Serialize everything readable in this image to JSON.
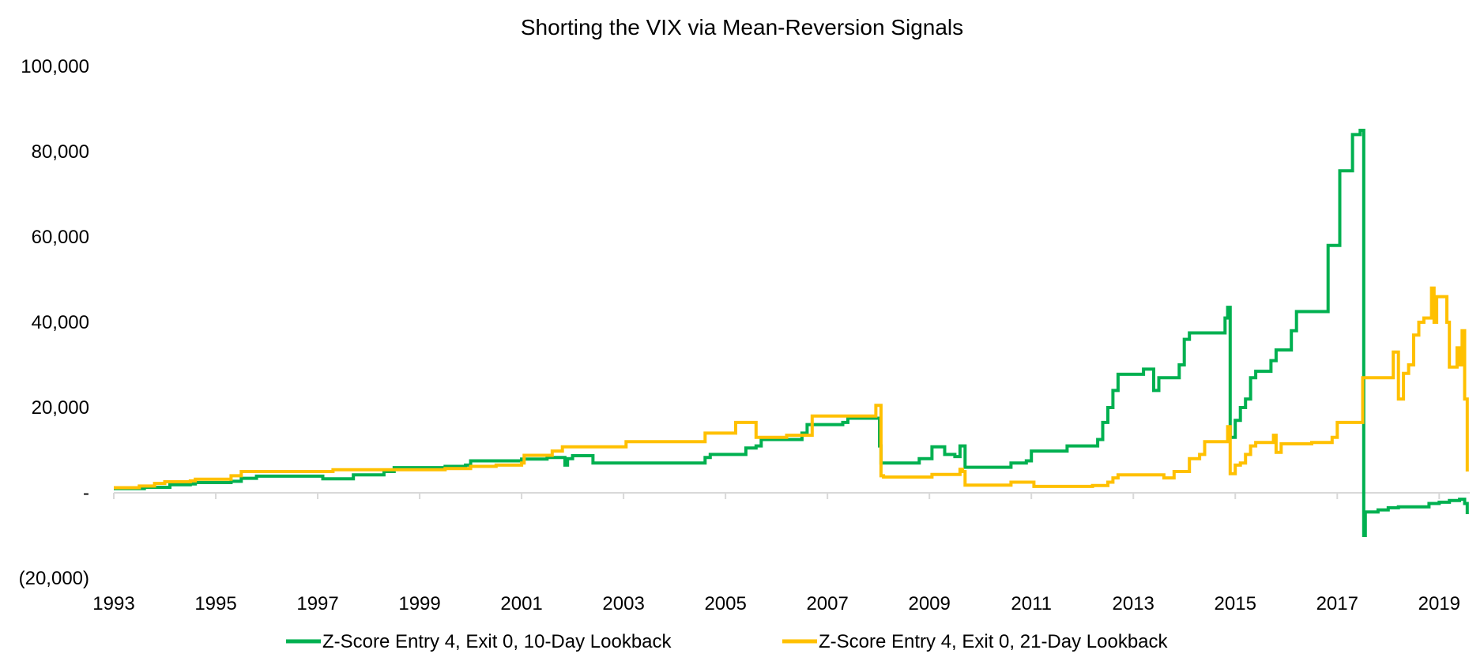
{
  "chart_data": {
    "type": "line",
    "title": "Shorting the VIX via Mean-Reversion Signals",
    "xlabel": "",
    "ylabel": "",
    "xlim": [
      1993,
      2019.6
    ],
    "ylim": [
      -20000,
      100000
    ],
    "x_ticks": [
      {
        "value": 1993,
        "label": "1993"
      },
      {
        "value": 1995,
        "label": "1995"
      },
      {
        "value": 1997,
        "label": "1997"
      },
      {
        "value": 1999,
        "label": "1999"
      },
      {
        "value": 2001,
        "label": "2001"
      },
      {
        "value": 2003,
        "label": "2003"
      },
      {
        "value": 2005,
        "label": "2005"
      },
      {
        "value": 2007,
        "label": "2007"
      },
      {
        "value": 2009,
        "label": "2009"
      },
      {
        "value": 2011,
        "label": "2011"
      },
      {
        "value": 2013,
        "label": "2013"
      },
      {
        "value": 2015,
        "label": "2015"
      },
      {
        "value": 2017,
        "label": "2017"
      },
      {
        "value": 2019,
        "label": "2019"
      }
    ],
    "y_ticks": [
      {
        "value": 100000,
        "label": "100,000"
      },
      {
        "value": 80000,
        "label": "80,000"
      },
      {
        "value": 60000,
        "label": "60,000"
      },
      {
        "value": 40000,
        "label": "40,000"
      },
      {
        "value": 20000,
        "label": "20,000"
      },
      {
        "value": 0,
        "label": "-"
      },
      {
        "value": -20000,
        "label": "(20,000)"
      }
    ],
    "grid": false,
    "legend_position": "bottom",
    "series": [
      {
        "name": "Z-Score Entry 4, Exit 0, 10-Day Lookback",
        "color": "#00B050",
        "points": [
          [
            1993.0,
            1000
          ],
          [
            1993.5,
            1000
          ],
          [
            1993.6,
            1300
          ],
          [
            1994.0,
            1300
          ],
          [
            1994.1,
            1900
          ],
          [
            1994.5,
            2100
          ],
          [
            1994.6,
            2400
          ],
          [
            1995.0,
            2400
          ],
          [
            1995.3,
            2700
          ],
          [
            1995.5,
            3400
          ],
          [
            1995.8,
            3900
          ],
          [
            1996.5,
            3900
          ],
          [
            1997.0,
            3900
          ],
          [
            1997.1,
            3300
          ],
          [
            1997.6,
            3300
          ],
          [
            1997.7,
            4200
          ],
          [
            1998.0,
            4200
          ],
          [
            1998.3,
            5000
          ],
          [
            1998.5,
            5900
          ],
          [
            1999.0,
            5900
          ],
          [
            1999.5,
            6200
          ],
          [
            1999.9,
            6500
          ],
          [
            2000.0,
            7500
          ],
          [
            2000.5,
            7500
          ],
          [
            2001.0,
            7900
          ],
          [
            2001.5,
            8300
          ],
          [
            2001.8,
            8300
          ],
          [
            2001.85,
            6500
          ],
          [
            2001.9,
            8000
          ],
          [
            2002.0,
            8700
          ],
          [
            2002.3,
            8700
          ],
          [
            2002.4,
            7000
          ],
          [
            2003.5,
            7000
          ],
          [
            2004.5,
            7000
          ],
          [
            2004.6,
            8300
          ],
          [
            2004.7,
            9000
          ],
          [
            2005.3,
            9000
          ],
          [
            2005.4,
            10500
          ],
          [
            2005.6,
            11000
          ],
          [
            2005.7,
            12500
          ],
          [
            2006.0,
            12500
          ],
          [
            2006.3,
            12500
          ],
          [
            2006.5,
            14000
          ],
          [
            2006.6,
            16000
          ],
          [
            2007.0,
            16000
          ],
          [
            2007.3,
            16500
          ],
          [
            2007.4,
            17500
          ],
          [
            2007.8,
            17500
          ],
          [
            2008.0,
            17500
          ],
          [
            2008.02,
            11000
          ],
          [
            2008.05,
            7000
          ],
          [
            2008.6,
            7000
          ],
          [
            2008.8,
            8000
          ],
          [
            2009.0,
            8000
          ],
          [
            2009.05,
            10800
          ],
          [
            2009.3,
            9000
          ],
          [
            2009.5,
            8500
          ],
          [
            2009.6,
            11000
          ],
          [
            2009.7,
            6000
          ],
          [
            2010.5,
            6000
          ],
          [
            2010.6,
            7000
          ],
          [
            2010.9,
            7500
          ],
          [
            2011.0,
            9800
          ],
          [
            2011.6,
            9800
          ],
          [
            2011.7,
            11000
          ],
          [
            2012.2,
            11000
          ],
          [
            2012.3,
            12500
          ],
          [
            2012.4,
            16500
          ],
          [
            2012.5,
            20000
          ],
          [
            2012.6,
            24000
          ],
          [
            2012.7,
            27800
          ],
          [
            2013.0,
            27800
          ],
          [
            2013.1,
            27800
          ],
          [
            2013.2,
            29000
          ],
          [
            2013.4,
            24000
          ],
          [
            2013.5,
            27000
          ],
          [
            2013.8,
            27000
          ],
          [
            2013.9,
            30000
          ],
          [
            2014.0,
            36000
          ],
          [
            2014.1,
            37500
          ],
          [
            2014.5,
            37500
          ],
          [
            2014.7,
            37500
          ],
          [
            2014.8,
            41000
          ],
          [
            2014.85,
            43500
          ],
          [
            2014.9,
            13000
          ],
          [
            2015.0,
            17000
          ],
          [
            2015.1,
            20000
          ],
          [
            2015.2,
            22000
          ],
          [
            2015.3,
            27000
          ],
          [
            2015.4,
            28500
          ],
          [
            2015.6,
            28500
          ],
          [
            2015.7,
            31000
          ],
          [
            2015.8,
            33500
          ],
          [
            2016.0,
            33500
          ],
          [
            2016.1,
            38000
          ],
          [
            2016.2,
            42500
          ],
          [
            2016.8,
            42500
          ],
          [
            2016.82,
            58000
          ],
          [
            2017.0,
            58000
          ],
          [
            2017.05,
            75500
          ],
          [
            2017.2,
            75500
          ],
          [
            2017.3,
            84000
          ],
          [
            2017.4,
            84000
          ],
          [
            2017.45,
            85000
          ],
          [
            2017.5,
            85000
          ],
          [
            2017.52,
            -10000
          ],
          [
            2017.55,
            -4500
          ],
          [
            2017.8,
            -4000
          ],
          [
            2018.0,
            -3500
          ],
          [
            2018.2,
            -3300
          ],
          [
            2018.5,
            -3300
          ],
          [
            2018.7,
            -3300
          ],
          [
            2018.8,
            -2500
          ],
          [
            2019.0,
            -2200
          ],
          [
            2019.2,
            -1800
          ],
          [
            2019.4,
            -1500
          ],
          [
            2019.5,
            -2500
          ],
          [
            2019.55,
            -5000
          ]
        ]
      },
      {
        "name": "Z-Score Entry 4, Exit 0, 21-Day Lookback",
        "color": "#FFC000",
        "points": [
          [
            1993.0,
            1200
          ],
          [
            1993.3,
            1200
          ],
          [
            1993.5,
            1600
          ],
          [
            1993.8,
            2200
          ],
          [
            1994.0,
            2600
          ],
          [
            1994.5,
            2800
          ],
          [
            1994.6,
            3200
          ],
          [
            1995.2,
            3200
          ],
          [
            1995.3,
            4000
          ],
          [
            1995.5,
            5000
          ],
          [
            1997.0,
            5000
          ],
          [
            1997.2,
            5000
          ],
          [
            1997.3,
            5400
          ],
          [
            1998.0,
            5400
          ],
          [
            1998.5,
            5400
          ],
          [
            1999.0,
            5400
          ],
          [
            1999.5,
            5700
          ],
          [
            2000.0,
            6200
          ],
          [
            2000.5,
            6500
          ],
          [
            2001.0,
            7000
          ],
          [
            2001.05,
            8800
          ],
          [
            2001.5,
            8800
          ],
          [
            2001.6,
            9800
          ],
          [
            2001.8,
            10800
          ],
          [
            2002.5,
            10800
          ],
          [
            2003.0,
            10800
          ],
          [
            2003.05,
            12000
          ],
          [
            2004.0,
            12000
          ],
          [
            2004.5,
            12000
          ],
          [
            2004.6,
            14000
          ],
          [
            2005.1,
            14000
          ],
          [
            2005.2,
            16500
          ],
          [
            2005.5,
            16500
          ],
          [
            2005.6,
            13000
          ],
          [
            2005.8,
            13000
          ],
          [
            2006.0,
            13000
          ],
          [
            2006.2,
            13500
          ],
          [
            2006.5,
            13500
          ],
          [
            2006.7,
            18000
          ],
          [
            2007.2,
            18000
          ],
          [
            2007.5,
            18000
          ],
          [
            2007.9,
            18000
          ],
          [
            2007.95,
            20500
          ],
          [
            2008.05,
            4000
          ],
          [
            2008.1,
            3700
          ],
          [
            2009.0,
            3700
          ],
          [
            2009.05,
            4300
          ],
          [
            2009.5,
            4300
          ],
          [
            2009.6,
            5500
          ],
          [
            2009.65,
            5000
          ],
          [
            2009.7,
            1800
          ],
          [
            2010.5,
            1800
          ],
          [
            2010.6,
            2500
          ],
          [
            2011.0,
            2500
          ],
          [
            2011.05,
            1500
          ],
          [
            2012.0,
            1500
          ],
          [
            2012.2,
            1700
          ],
          [
            2012.5,
            2500
          ],
          [
            2012.6,
            3500
          ],
          [
            2012.7,
            4200
          ],
          [
            2013.5,
            4200
          ],
          [
            2013.6,
            3500
          ],
          [
            2013.8,
            5000
          ],
          [
            2014.0,
            5000
          ],
          [
            2014.1,
            8000
          ],
          [
            2014.3,
            9000
          ],
          [
            2014.4,
            12000
          ],
          [
            2014.8,
            12000
          ],
          [
            2014.85,
            15500
          ],
          [
            2014.9,
            4500
          ],
          [
            2015.0,
            6500
          ],
          [
            2015.1,
            7000
          ],
          [
            2015.2,
            9000
          ],
          [
            2015.3,
            11000
          ],
          [
            2015.4,
            11800
          ],
          [
            2015.7,
            11800
          ],
          [
            2015.75,
            13500
          ],
          [
            2015.8,
            9500
          ],
          [
            2015.9,
            11500
          ],
          [
            2016.2,
            11500
          ],
          [
            2016.5,
            11800
          ],
          [
            2016.8,
            11800
          ],
          [
            2016.9,
            13000
          ],
          [
            2017.0,
            16500
          ],
          [
            2017.3,
            16500
          ],
          [
            2017.45,
            16500
          ],
          [
            2017.5,
            27000
          ],
          [
            2018.0,
            27000
          ],
          [
            2018.1,
            33000
          ],
          [
            2018.2,
            22000
          ],
          [
            2018.3,
            28000
          ],
          [
            2018.4,
            30000
          ],
          [
            2018.5,
            37000
          ],
          [
            2018.6,
            40000
          ],
          [
            2018.7,
            41000
          ],
          [
            2018.8,
            41000
          ],
          [
            2018.85,
            48000
          ],
          [
            2018.9,
            40000
          ],
          [
            2018.95,
            46000
          ],
          [
            2019.1,
            46000
          ],
          [
            2019.15,
            40000
          ],
          [
            2019.2,
            29500
          ],
          [
            2019.3,
            29500
          ],
          [
            2019.35,
            34000
          ],
          [
            2019.4,
            30000
          ],
          [
            2019.45,
            38000
          ],
          [
            2019.5,
            22000
          ],
          [
            2019.55,
            5000
          ]
        ]
      }
    ]
  }
}
